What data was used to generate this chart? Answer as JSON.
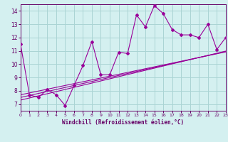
{
  "xlabel": "Windchill (Refroidissement éolien,°C)",
  "bg_color": "#d4f0f0",
  "grid_color": "#aad4d4",
  "line_color": "#990099",
  "x_data": [
    0,
    1,
    2,
    3,
    4,
    5,
    6,
    7,
    8,
    9,
    10,
    11,
    12,
    13,
    14,
    15,
    16,
    17,
    18,
    19,
    20,
    21,
    22,
    23
  ],
  "y_main": [
    11.5,
    7.7,
    7.5,
    8.1,
    7.7,
    6.9,
    8.4,
    9.9,
    11.7,
    9.2,
    9.2,
    10.9,
    10.8,
    13.7,
    12.8,
    14.4,
    13.8,
    12.6,
    12.2,
    12.2,
    12.0,
    13.0,
    11.1,
    12.0
  ],
  "y_reg1": [
    7.7,
    7.84,
    7.98,
    8.12,
    8.26,
    8.4,
    8.54,
    8.68,
    8.82,
    8.96,
    9.1,
    9.24,
    9.38,
    9.52,
    9.66,
    9.8,
    9.94,
    10.08,
    10.22,
    10.36,
    10.5,
    10.64,
    10.78,
    10.92
  ],
  "y_reg2": [
    7.5,
    7.65,
    7.8,
    7.95,
    8.1,
    8.25,
    8.4,
    8.55,
    8.7,
    8.85,
    9.0,
    9.15,
    9.3,
    9.45,
    9.6,
    9.75,
    9.9,
    10.05,
    10.2,
    10.35,
    10.5,
    10.65,
    10.8,
    10.95
  ],
  "y_reg3": [
    7.3,
    7.46,
    7.62,
    7.78,
    7.94,
    8.1,
    8.26,
    8.42,
    8.58,
    8.74,
    8.9,
    9.06,
    9.22,
    9.38,
    9.54,
    9.7,
    9.86,
    10.02,
    10.18,
    10.34,
    10.5,
    10.66,
    10.82,
    10.98
  ],
  "xlim": [
    0,
    23
  ],
  "ylim": [
    6.5,
    14.5
  ],
  "yticks": [
    7,
    8,
    9,
    10,
    11,
    12,
    13,
    14
  ],
  "xticks": [
    0,
    1,
    2,
    3,
    4,
    5,
    6,
    7,
    8,
    9,
    10,
    11,
    12,
    13,
    14,
    15,
    16,
    17,
    18,
    19,
    20,
    21,
    22,
    23
  ]
}
